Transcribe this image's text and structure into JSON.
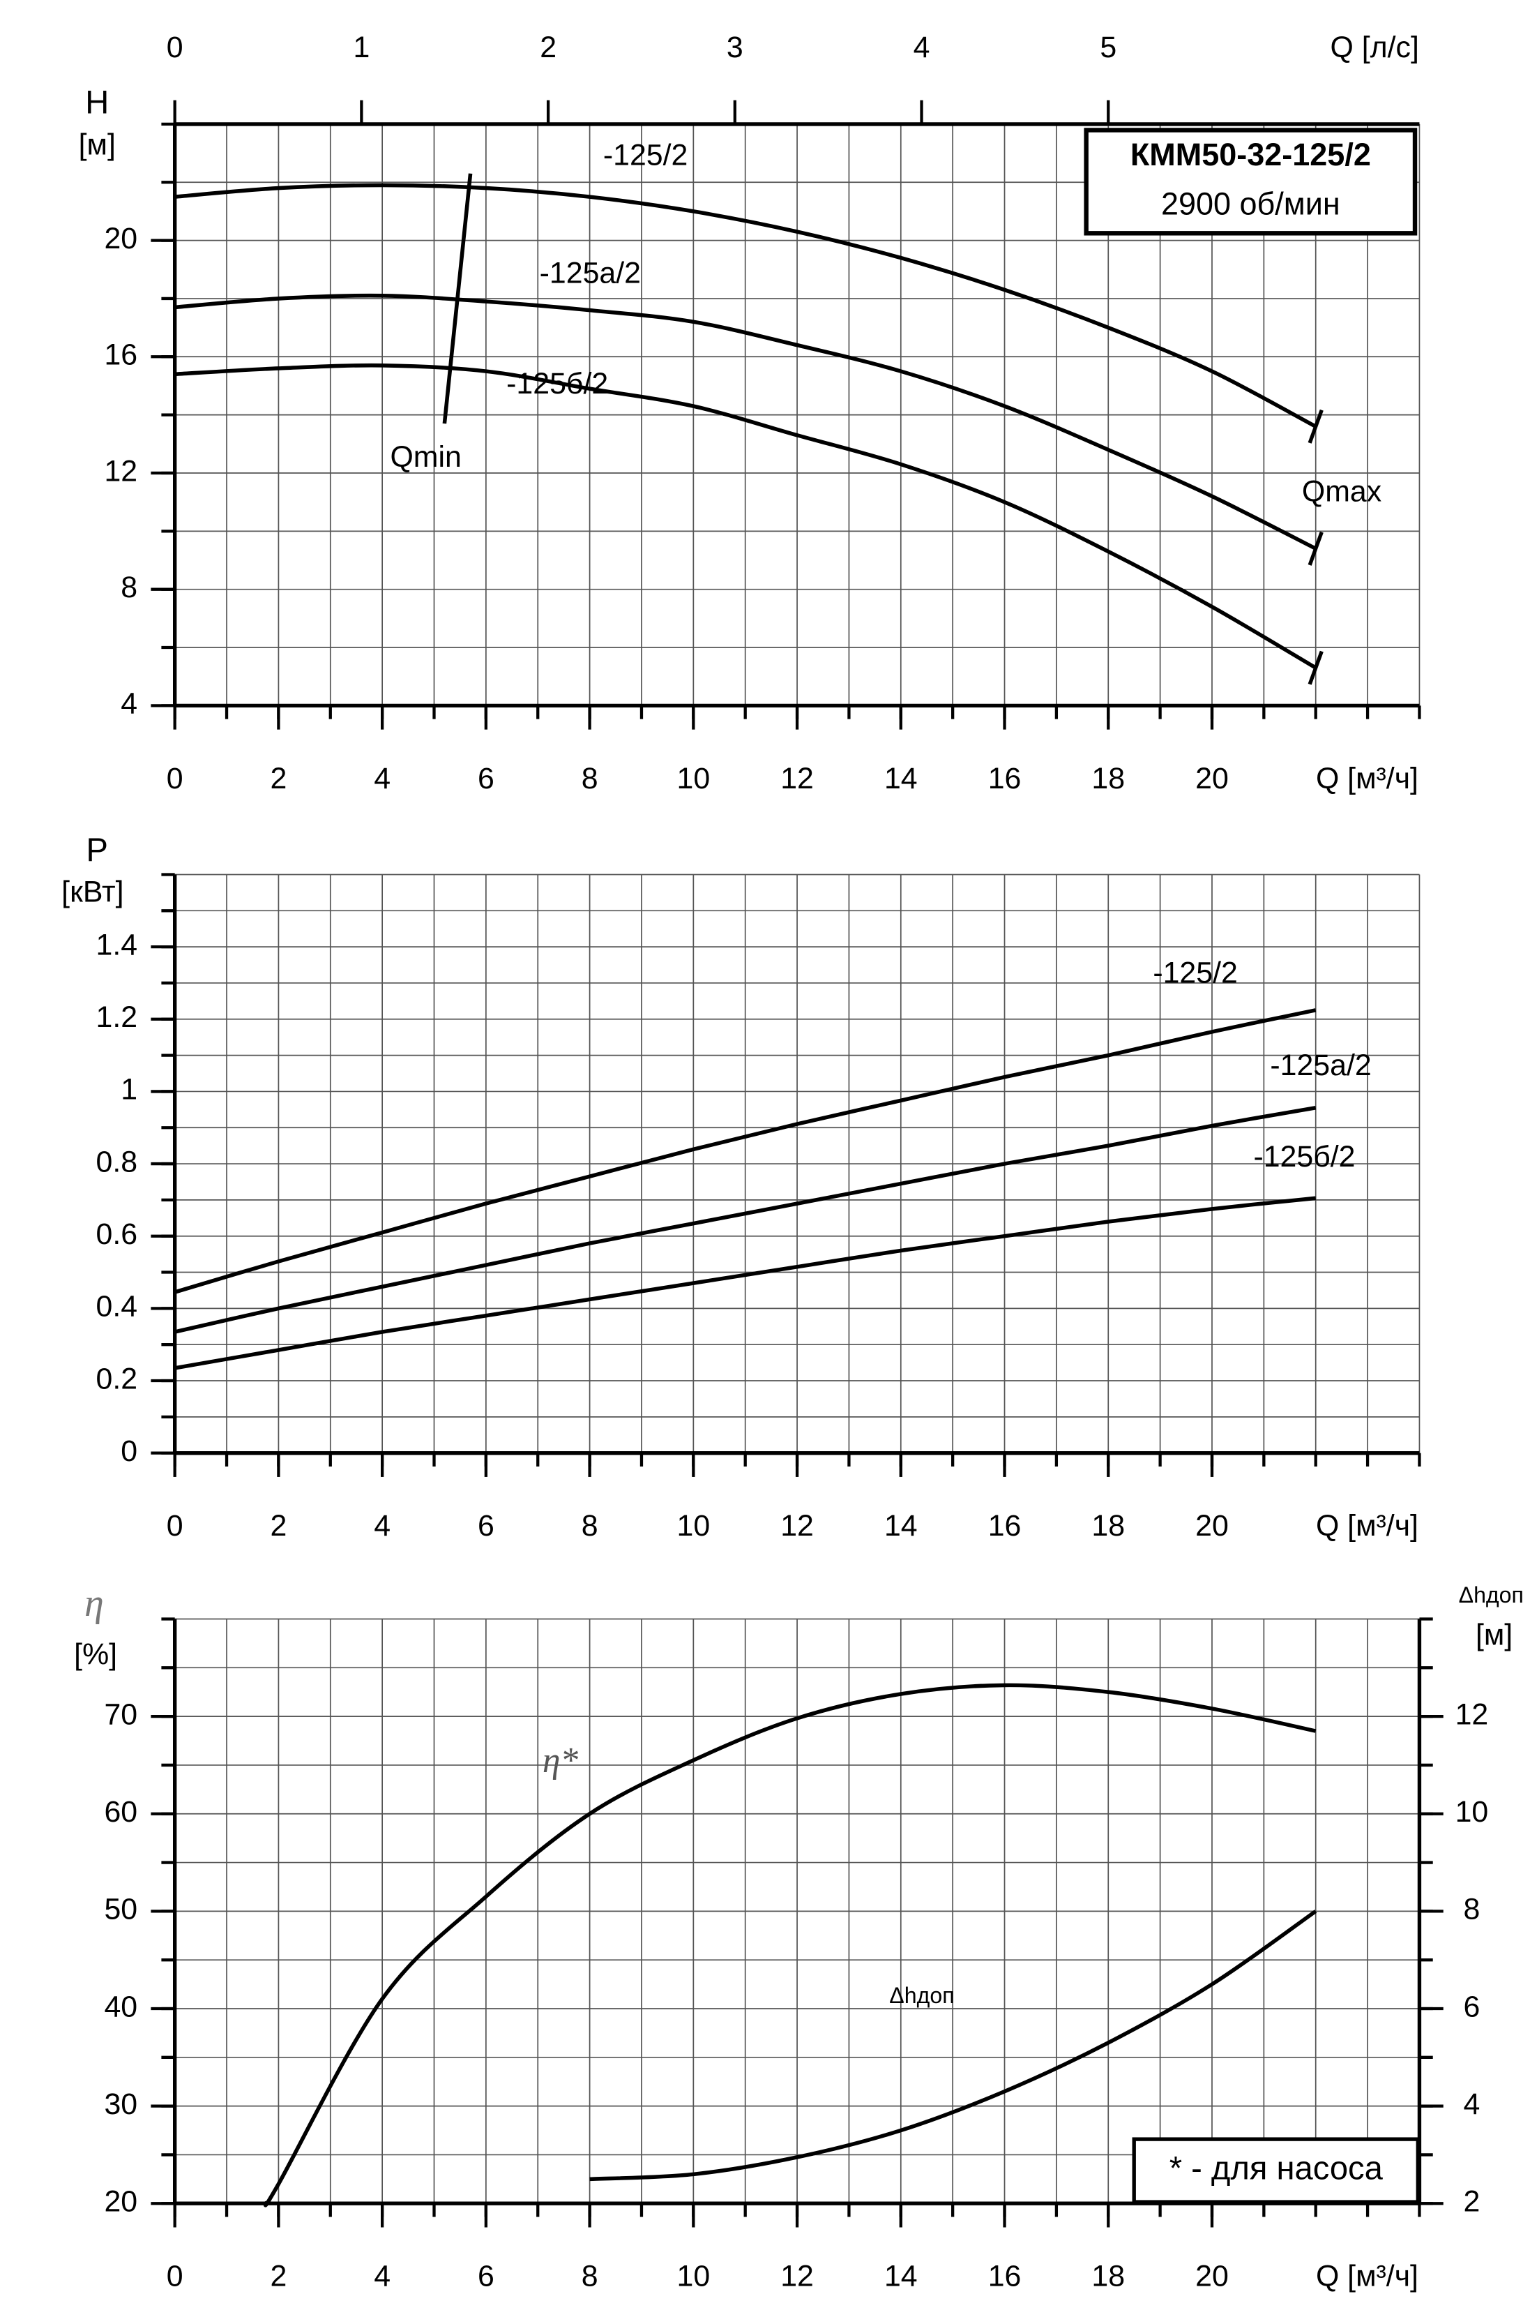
{
  "chart_data": [
    {
      "type": "line",
      "title": "КММ50-32-125/2",
      "subtitle": "2900 об/мин",
      "y_label": "H",
      "y_unit": "[м]",
      "x_label": "Q [м³/ч]",
      "x2_label": "Q [л/с]",
      "xlim": [
        0,
        24
      ],
      "xticks": [
        0,
        2,
        4,
        6,
        8,
        10,
        12,
        14,
        16,
        18,
        20
      ],
      "x2lim": [
        0,
        6.6667
      ],
      "x2ticks": [
        0,
        1,
        2,
        3,
        4,
        5
      ],
      "ylim": [
        4,
        24
      ],
      "yticks": [
        4,
        8,
        12,
        16,
        20
      ],
      "grid": true,
      "grid_step_x": 1,
      "grid_step_y": 2,
      "qmax_label": "Qmax",
      "series": [
        {
          "name": "-125/2",
          "color": "#000000",
          "x": [
            0,
            2,
            4,
            6,
            8,
            10,
            12,
            14,
            16,
            18,
            20,
            22
          ],
          "values": [
            21.5,
            21.8,
            21.9,
            21.8,
            21.5,
            21.0,
            20.3,
            19.4,
            18.3,
            17.0,
            15.5,
            13.6
          ]
        },
        {
          "name": "-125а/2",
          "color": "#000000",
          "x": [
            0,
            2,
            4,
            6,
            8,
            10,
            12,
            14,
            16,
            18,
            20,
            22
          ],
          "values": [
            17.7,
            18.0,
            18.1,
            17.9,
            17.6,
            17.2,
            16.4,
            15.5,
            14.3,
            12.8,
            11.2,
            9.4
          ]
        },
        {
          "name": "-125б/2",
          "color": "#000000",
          "x": [
            0,
            2,
            4,
            6,
            8,
            10,
            12,
            14,
            16,
            18,
            20,
            22
          ],
          "values": [
            15.4,
            15.6,
            15.7,
            15.5,
            14.9,
            14.3,
            13.3,
            12.3,
            11.0,
            9.3,
            7.4,
            5.3
          ]
        },
        {
          "name": "Qmin",
          "color": "#000000",
          "x": [
            5.7,
            5.2
          ],
          "values": [
            22.3,
            13.7
          ]
        }
      ]
    },
    {
      "type": "line",
      "y_label": "P",
      "y_unit": "[кВт]",
      "x_label": "Q [м³/ч]",
      "xlim": [
        0,
        24
      ],
      "xticks": [
        0,
        2,
        4,
        6,
        8,
        10,
        12,
        14,
        16,
        18,
        20
      ],
      "ylim": [
        0,
        1.6
      ],
      "yticks": [
        0,
        0.2,
        0.4,
        0.6,
        0.8,
        1,
        1.2,
        1.4
      ],
      "grid": true,
      "grid_step_x": 1,
      "grid_step_y": 0.1,
      "series": [
        {
          "name": "-125/2",
          "color": "#000000",
          "x": [
            0,
            2,
            4,
            6,
            8,
            10,
            12,
            14,
            16,
            18,
            20,
            22
          ],
          "values": [
            0.445,
            0.53,
            0.61,
            0.69,
            0.765,
            0.84,
            0.91,
            0.975,
            1.04,
            1.1,
            1.165,
            1.225
          ]
        },
        {
          "name": "-125а/2",
          "color": "#000000",
          "x": [
            0,
            2,
            4,
            6,
            8,
            10,
            12,
            14,
            16,
            18,
            20,
            22
          ],
          "values": [
            0.335,
            0.4,
            0.46,
            0.52,
            0.58,
            0.635,
            0.69,
            0.745,
            0.8,
            0.85,
            0.905,
            0.955
          ]
        },
        {
          "name": "-125б/2",
          "color": "#000000",
          "x": [
            0,
            2,
            4,
            6,
            8,
            10,
            12,
            14,
            16,
            18,
            20,
            22
          ],
          "values": [
            0.235,
            0.285,
            0.335,
            0.38,
            0.425,
            0.47,
            0.515,
            0.56,
            0.6,
            0.64,
            0.675,
            0.705
          ]
        }
      ]
    },
    {
      "type": "line",
      "y_label": "η",
      "y_unit": "[%]",
      "y2_label": "Δhдоп",
      "y2_unit": "[м]",
      "x_label": "Q [м³/ч]",
      "xlim": [
        0,
        24
      ],
      "xticks": [
        0,
        2,
        4,
        6,
        8,
        10,
        12,
        14,
        16,
        18,
        20
      ],
      "ylim": [
        20,
        80
      ],
      "yticks": [
        20,
        30,
        40,
        50,
        60,
        70
      ],
      "y2lim": [
        2,
        14
      ],
      "y2ticks": [
        2,
        4,
        6,
        8,
        10,
        12
      ],
      "grid": true,
      "grid_step_x": 1,
      "grid_step_y": 5,
      "note": "* - для насоса",
      "series": [
        {
          "name": "η*",
          "color": "#000000",
          "x": [
            1.75,
            2,
            4,
            6,
            8,
            10,
            12,
            14,
            16,
            18,
            20,
            22
          ],
          "values": [
            20,
            22,
            41,
            51.5,
            60,
            65.5,
            69.8,
            72.3,
            73.2,
            72.5,
            70.8,
            68.5
          ]
        },
        {
          "name": "Δhдоп",
          "color": "#000000",
          "axis": "y2",
          "x": [
            8,
            10,
            12,
            14,
            16,
            18,
            20,
            22
          ],
          "values": [
            2.5,
            2.6,
            2.95,
            3.5,
            4.3,
            5.3,
            6.5,
            8.0
          ]
        }
      ]
    }
  ]
}
